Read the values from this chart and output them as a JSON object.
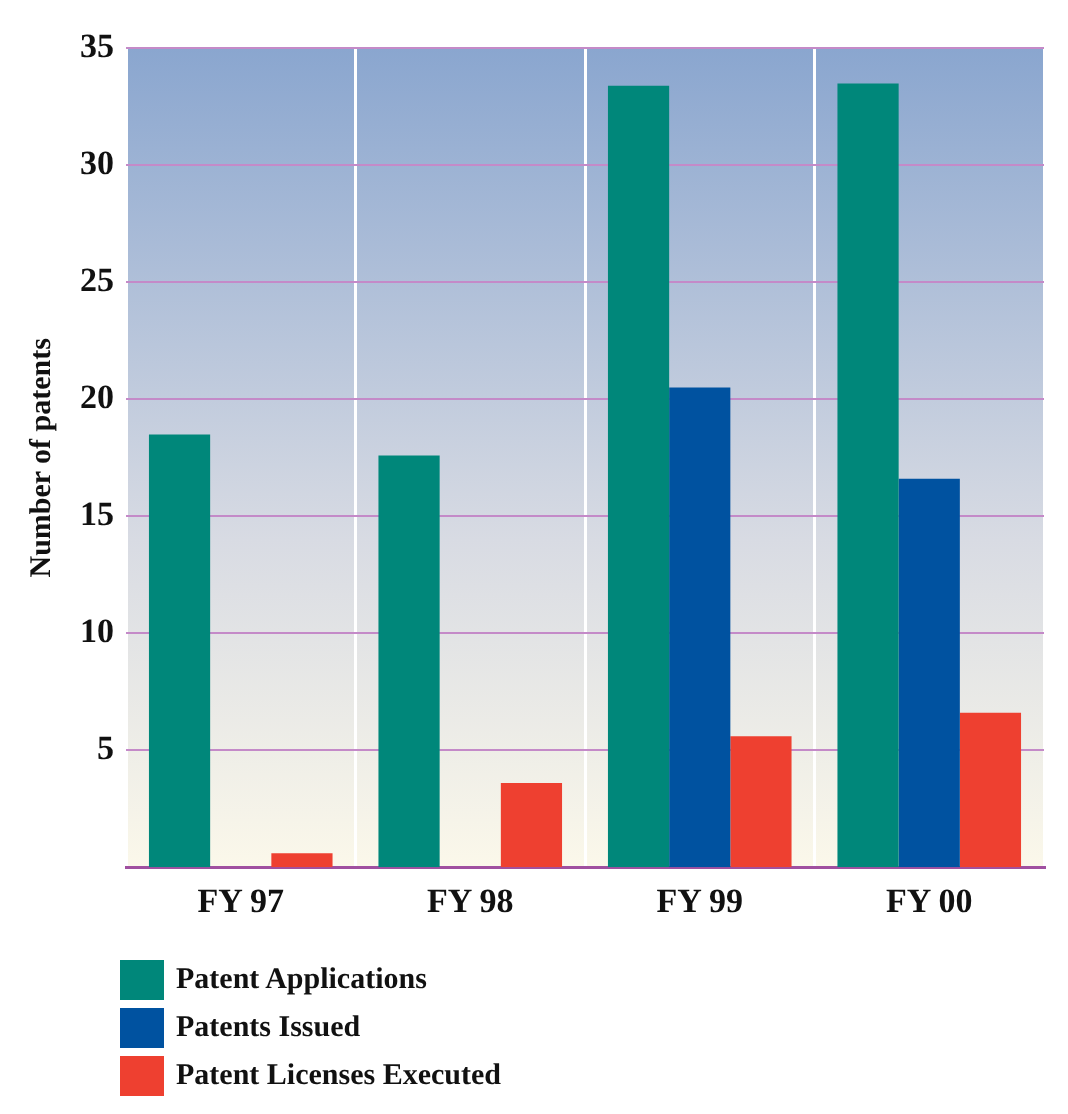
{
  "chart_data": {
    "type": "bar",
    "ylabel": "Number of patents",
    "categories": [
      "FY 97",
      "FY 98",
      "FY 99",
      "FY 00"
    ],
    "series": [
      {
        "name": "Patent Applications",
        "color": "#00877a",
        "values": [
          18.5,
          17.6,
          33.4,
          33.5
        ]
      },
      {
        "name": "Patents Issued",
        "color": "#0052a0",
        "values": [
          null,
          null,
          20.5,
          16.6
        ]
      },
      {
        "name": "Patent Licenses Executed",
        "color": "#ee4030",
        "values": [
          0.6,
          3.6,
          5.6,
          6.6
        ]
      }
    ],
    "ylim": [
      0,
      35
    ],
    "yticks": [
      5,
      10,
      15,
      20,
      25,
      30,
      35
    ],
    "grid": true,
    "legend": "bottom left"
  }
}
